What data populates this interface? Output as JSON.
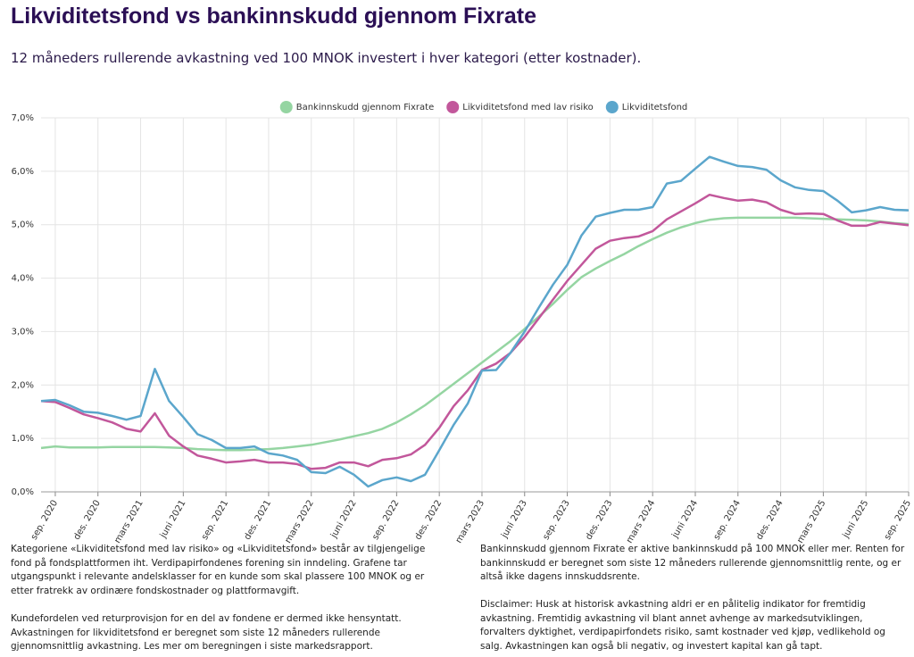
{
  "chart_data": {
    "type": "line",
    "title": "Likviditetsfond vs bankinnskudd gjennom Fixrate",
    "subtitle": "12 måneders rullerende avkastning ved 100 MNOK investert i hver kategori (etter kostnader).",
    "categories": [
      null,
      "sep. 2020",
      null,
      null,
      "des. 2020",
      null,
      null,
      "mars 2021",
      null,
      null,
      "juni 2021",
      null,
      null,
      "sep. 2021",
      null,
      null,
      "des. 2021",
      null,
      null,
      "mars 2022",
      null,
      null,
      "juni 2022",
      null,
      null,
      "sep. 2022",
      null,
      null,
      "des. 2022",
      null,
      null,
      "mars 2023",
      null,
      null,
      "juni 2023",
      null,
      null,
      "sep. 2023",
      null,
      null,
      "des. 2023",
      null,
      null,
      "mars 2024",
      null,
      null,
      "juni 2024",
      null,
      null,
      "sep. 2024",
      null,
      null,
      "des. 2024",
      null,
      null,
      "mars 2025",
      null,
      null,
      "juni 2025",
      null,
      null,
      "sep. 2025"
    ],
    "series": [
      {
        "name": "Bankinnskudd gjennom Fixrate",
        "color": "#95d5a2",
        "values": [
          0.82,
          0.85,
          0.83,
          0.83,
          0.83,
          0.84,
          0.84,
          0.84,
          0.84,
          0.83,
          0.82,
          0.8,
          0.79,
          0.78,
          0.78,
          0.79,
          0.8,
          0.82,
          0.85,
          0.88,
          0.93,
          0.98,
          1.04,
          1.1,
          1.18,
          1.3,
          1.45,
          1.62,
          1.82,
          2.02,
          2.22,
          2.42,
          2.62,
          2.82,
          3.05,
          3.28,
          3.52,
          3.78,
          4.02,
          4.18,
          4.32,
          4.45,
          4.6,
          4.73,
          4.85,
          4.95,
          5.03,
          5.09,
          5.12,
          5.13,
          5.13,
          5.13,
          5.13,
          5.13,
          5.12,
          5.11,
          5.1,
          5.09,
          5.08,
          5.06,
          5.03,
          5.01
        ]
      },
      {
        "name": "Likviditetsfond med lav risiko",
        "color": "#c2579b",
        "values": [
          1.7,
          1.68,
          1.57,
          1.45,
          1.38,
          1.3,
          1.18,
          1.13,
          1.47,
          1.05,
          0.85,
          0.68,
          0.62,
          0.55,
          0.57,
          0.6,
          0.55,
          0.55,
          0.52,
          0.43,
          0.45,
          0.55,
          0.55,
          0.48,
          0.6,
          0.63,
          0.7,
          0.88,
          1.2,
          1.6,
          1.9,
          2.28,
          2.4,
          2.6,
          2.9,
          3.25,
          3.6,
          3.95,
          4.25,
          4.55,
          4.7,
          4.75,
          4.78,
          4.88,
          5.1,
          5.25,
          5.4,
          5.56,
          5.5,
          5.45,
          5.47,
          5.42,
          5.28,
          5.2,
          5.21,
          5.2,
          5.08,
          4.98,
          4.98,
          5.05,
          5.02,
          4.99
        ]
      },
      {
        "name": "Likviditetsfond",
        "color": "#5ba6cc",
        "values": [
          1.7,
          1.72,
          1.62,
          1.5,
          1.48,
          1.42,
          1.35,
          1.42,
          2.3,
          1.7,
          1.4,
          1.08,
          0.97,
          0.82,
          0.82,
          0.85,
          0.72,
          0.68,
          0.6,
          0.37,
          0.35,
          0.47,
          0.32,
          0.1,
          0.22,
          0.27,
          0.2,
          0.32,
          0.78,
          1.25,
          1.65,
          2.27,
          2.28,
          2.6,
          3.0,
          3.45,
          3.88,
          4.25,
          4.8,
          5.15,
          5.22,
          5.28,
          5.28,
          5.33,
          5.77,
          5.82,
          6.05,
          6.27,
          6.18,
          6.1,
          6.08,
          6.03,
          5.83,
          5.7,
          5.65,
          5.63,
          5.45,
          5.23,
          5.27,
          5.33,
          5.28,
          5.27
        ]
      }
    ],
    "ylim": [
      0,
      7
    ],
    "yticks": [
      {
        "value": 0,
        "label": "0,0%"
      },
      {
        "value": 1,
        "label": "1,0%"
      },
      {
        "value": 2,
        "label": "2,0%"
      },
      {
        "value": 3,
        "label": "3,0%"
      },
      {
        "value": 4,
        "label": "4,0%"
      },
      {
        "value": 5,
        "label": "5,0%"
      },
      {
        "value": 6,
        "label": "6,0%"
      },
      {
        "value": 7,
        "label": "7,0%"
      }
    ],
    "grid": true,
    "legend": "top"
  },
  "notes": [
    "Kategoriene «Likviditetsfond med lav risiko» og «Likviditetsfond» består av tilgjengelige fond på fondsplattformen iht. Verdipapirfondenes forening sin inndeling. Grafene tar utgangspunkt i relevante andelsklasser for en kunde som skal plassere 100 MNOK og er etter fratrekk av ordinære fondskostnader og plattformavgift.",
    "Kundefordelen ved returprovisjon for en del av fondene er dermed ikke hensyntatt. Avkastningen for likviditetsfond er beregnet som siste 12 måneders rullerende gjennomsnittlig avkastning. Les mer om beregningen i siste markedsrapport.",
    "Bankinnskudd gjennom Fixrate er aktive bankinnskudd på 100 MNOK eller mer. Renten for bankinnskudd er beregnet som siste 12 måneders rullerende gjennomsnittlig rente, og er altså ikke dagens innskuddsrente.",
    "Disclaimer: Husk at historisk avkastning aldri er en pålitelig indikator for fremtidig avkastning. Fremtidig avkastning vil blant annet avhenge av markedsutviklingen, forvalters dyktighet, verdipapirfondets risiko, samt kostnader ved kjøp, vedlikehold og salg. Avkastningen kan også bli negativ, og investert kapital kan gå tapt."
  ]
}
